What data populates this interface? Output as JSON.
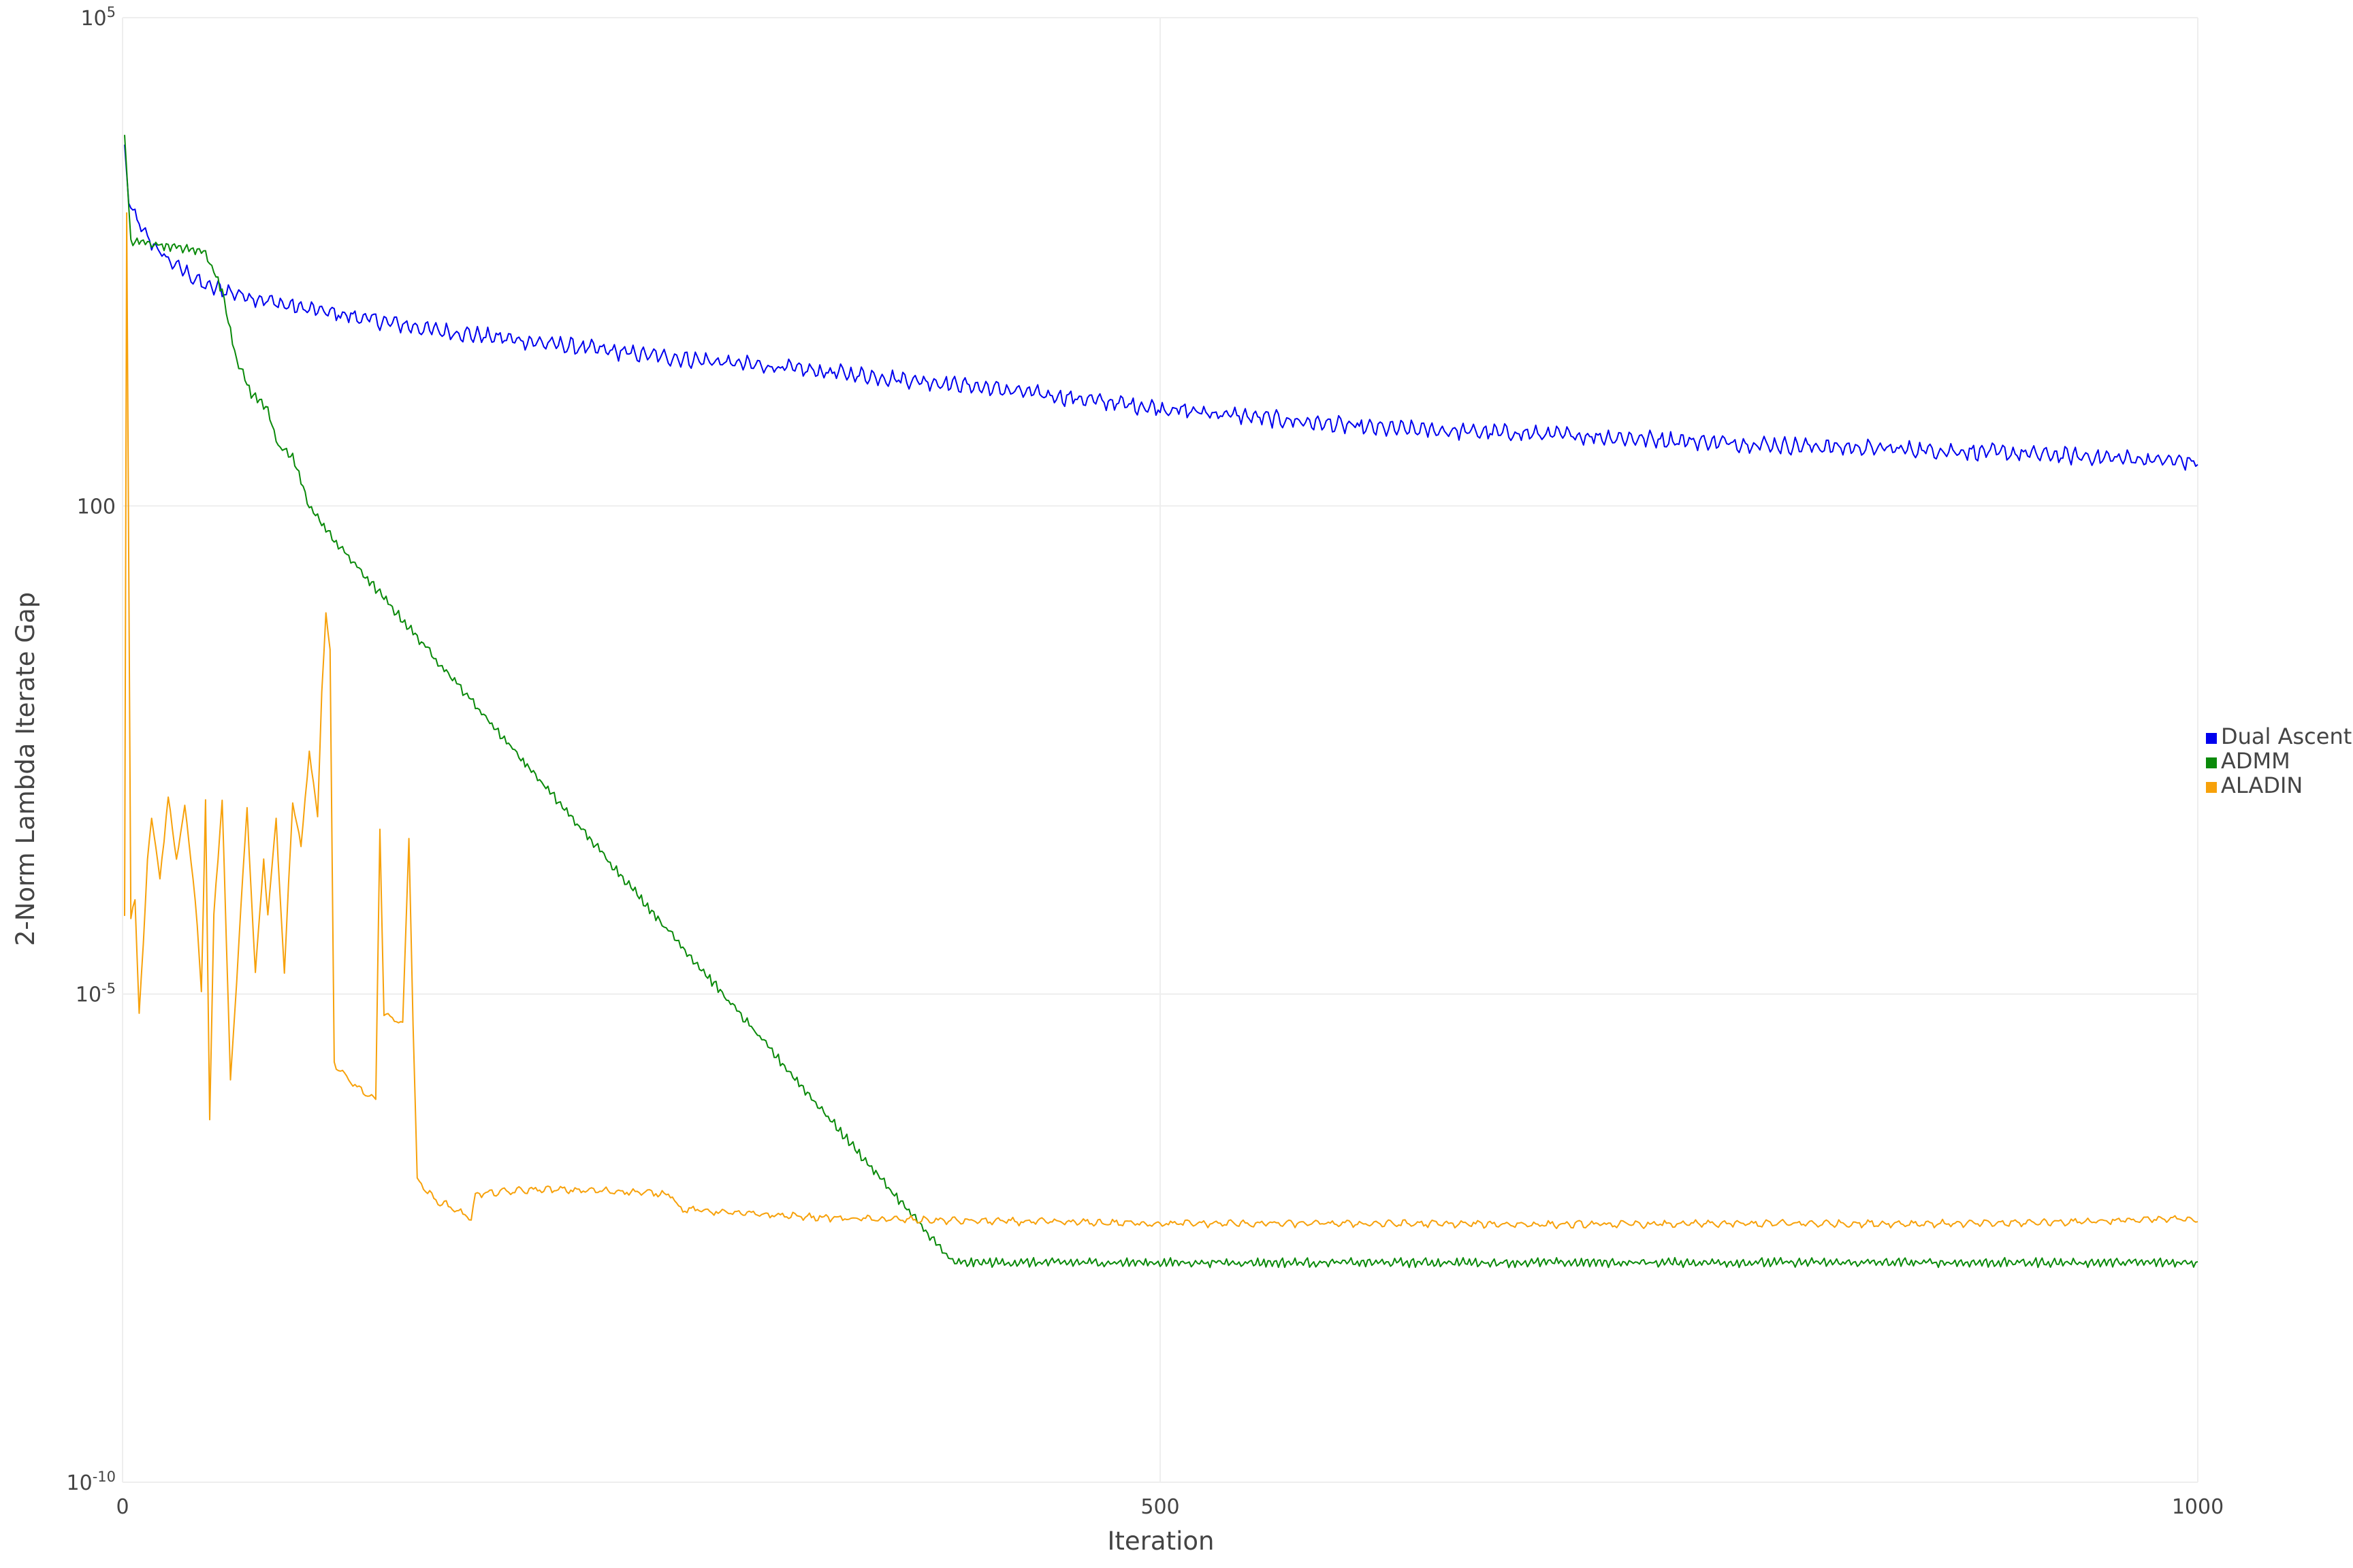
{
  "chart_data": {
    "type": "line",
    "title": "",
    "xlabel": "Iteration",
    "ylabel": "2-Norm Lambda Iterate Gap",
    "x_scale": "linear",
    "y_scale": "log",
    "xlim": [
      0,
      1000
    ],
    "ylim_exponent": [
      -10,
      5
    ],
    "x_ticks": [
      {
        "value": 0,
        "label": "0"
      },
      {
        "value": 500,
        "label": "500"
      },
      {
        "value": 1000,
        "label": "1000"
      }
    ],
    "y_ticks": [
      {
        "exp": 5,
        "base": "10",
        "sup": "5"
      },
      {
        "exp": 0,
        "base": "100",
        "sup": ""
      },
      {
        "exp": -5,
        "base": "10",
        "sup": "-5"
      },
      {
        "exp": -10,
        "base": "10",
        "sup": "-10"
      }
    ],
    "grid": true,
    "legend_position": "right",
    "series": [
      {
        "name": "Dual Ascent",
        "color": "#0000ee",
        "noise": 0.09,
        "period": 5,
        "log10_points": [
          [
            1,
            3.7
          ],
          [
            3,
            3.1
          ],
          [
            10,
            2.8
          ],
          [
            20,
            2.55
          ],
          [
            40,
            2.25
          ],
          [
            80,
            2.05
          ],
          [
            150,
            1.8
          ],
          [
            250,
            1.55
          ],
          [
            400,
            1.25
          ],
          [
            500,
            1.0
          ],
          [
            600,
            0.8
          ],
          [
            700,
            0.72
          ],
          [
            800,
            0.62
          ],
          [
            900,
            0.55
          ],
          [
            1000,
            0.45
          ]
        ]
      },
      {
        "name": "ADMM",
        "color": "#0a8a0a",
        "noise": 0.05,
        "period": 3,
        "log10_points": [
          [
            1,
            3.8
          ],
          [
            4,
            2.7
          ],
          [
            10,
            2.7
          ],
          [
            40,
            2.6
          ],
          [
            48,
            2.2
          ],
          [
            55,
            1.5
          ],
          [
            62,
            1.15
          ],
          [
            70,
            1.0
          ],
          [
            75,
            0.6
          ],
          [
            82,
            0.5
          ],
          [
            90,
            0.0
          ],
          [
            100,
            -0.3
          ],
          [
            110,
            -0.55
          ],
          [
            400,
            -7.75
          ],
          [
            1000,
            -7.75
          ]
        ]
      },
      {
        "name": "ALADIN",
        "color": "#f7a10a",
        "noise": 0.04,
        "period": 7,
        "log10_points": [
          [
            1,
            -4.2
          ],
          [
            2,
            3.0
          ],
          [
            4,
            -4.2
          ],
          [
            6,
            -4.0
          ],
          [
            8,
            -5.2
          ],
          [
            10,
            -4.5
          ],
          [
            12,
            -3.6
          ],
          [
            14,
            -3.2
          ],
          [
            18,
            -3.8
          ],
          [
            22,
            -3.0
          ],
          [
            26,
            -3.6
          ],
          [
            30,
            -3.1
          ],
          [
            34,
            -3.8
          ],
          [
            36,
            -4.3
          ],
          [
            38,
            -5.0
          ],
          [
            40,
            -3.0
          ],
          [
            42,
            -6.3
          ],
          [
            44,
            -4.2
          ],
          [
            48,
            -3.0
          ],
          [
            52,
            -5.9
          ],
          [
            56,
            -4.5
          ],
          [
            60,
            -3.1
          ],
          [
            64,
            -4.8
          ],
          [
            68,
            -3.6
          ],
          [
            70,
            -4.2
          ],
          [
            74,
            -3.2
          ],
          [
            78,
            -4.8
          ],
          [
            82,
            -3.0
          ],
          [
            86,
            -3.5
          ],
          [
            90,
            -2.5
          ],
          [
            94,
            -3.2
          ],
          [
            96,
            -1.9
          ],
          [
            98,
            -1.1
          ],
          [
            100,
            -1.5
          ],
          [
            102,
            -5.7
          ],
          [
            105,
            -5.8
          ],
          [
            110,
            -5.9
          ],
          [
            116,
            -6.0
          ],
          [
            122,
            -6.1
          ],
          [
            124,
            -3.3
          ],
          [
            126,
            -5.2
          ],
          [
            130,
            -5.25
          ],
          [
            135,
            -5.3
          ],
          [
            138,
            -3.4
          ],
          [
            140,
            -5.3
          ],
          [
            142,
            -6.9
          ],
          [
            150,
            -7.1
          ],
          [
            160,
            -7.2
          ],
          [
            168,
            -7.3
          ],
          [
            170,
            -7.05
          ],
          [
            200,
            -7.0
          ],
          [
            240,
            -7.02
          ],
          [
            265,
            -7.05
          ],
          [
            268,
            -7.2
          ],
          [
            300,
            -7.25
          ],
          [
            350,
            -7.3
          ],
          [
            400,
            -7.32
          ],
          [
            500,
            -7.35
          ],
          [
            600,
            -7.35
          ],
          [
            700,
            -7.36
          ],
          [
            800,
            -7.35
          ],
          [
            900,
            -7.35
          ],
          [
            1000,
            -7.3
          ]
        ]
      }
    ]
  }
}
